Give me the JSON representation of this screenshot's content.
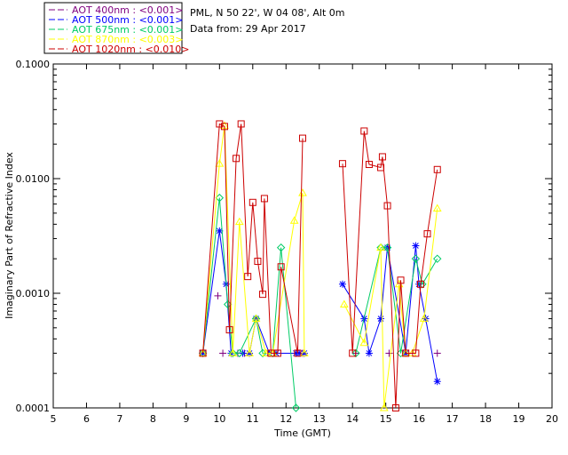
{
  "chart_data": {
    "type": "scatter",
    "title_lines": [
      "PML, N 50 22', W 04 08', Alt 0m",
      "Data from: 29 Apr 2017"
    ],
    "xlabel": "Time (GMT)",
    "ylabel": "Imaginary Part of Refractive Index",
    "xlim": [
      5,
      20
    ],
    "ylim": [
      0.0001,
      0.1
    ],
    "yscale": "log",
    "x_ticks": [
      "5",
      "6",
      "7",
      "8",
      "9",
      "10",
      "11",
      "12",
      "13",
      "14",
      "15",
      "16",
      "17",
      "18",
      "19",
      "20"
    ],
    "y_ticks": [
      "0.1000",
      "0.0100",
      "0.0010",
      "0.0001"
    ],
    "grid": false,
    "legend_position": "top-left, outside plot",
    "series": [
      {
        "name": "AOT  400nm : <0.001>",
        "color": "#7f007f",
        "marker": "plus",
        "connected": false,
        "points": [
          [
            9.95,
            0.00095
          ],
          [
            10.1,
            0.0003
          ],
          [
            10.55,
            0.0003
          ],
          [
            10.75,
            0.0003
          ],
          [
            12.5,
            0.0003
          ],
          [
            14.1,
            0.0003
          ],
          [
            15.1,
            0.0003
          ],
          [
            15.6,
            0.0003
          ],
          [
            16.55,
            0.0003
          ]
        ]
      },
      {
        "name": "AOT  500nm : <0.001>",
        "color": "#0000ff",
        "marker": "asterisk",
        "connected": true,
        "points": [
          [
            9.5,
            0.0003
          ],
          [
            10.0,
            0.0035
          ],
          [
            10.2,
            0.0012
          ],
          [
            10.35,
            0.0003
          ],
          [
            10.7,
            0.0003
          ],
          [
            10.9,
            0.0003
          ],
          [
            11.1,
            0.0006
          ],
          [
            11.5,
            0.0003
          ],
          [
            11.7,
            0.0003
          ],
          [
            12.3,
            0.0003
          ],
          [
            12.4,
            0.0003
          ],
          [
            12.55,
            0.0003
          ],
          null,
          [
            13.7,
            0.0012
          ],
          [
            14.35,
            0.0006
          ],
          [
            14.5,
            0.0003
          ],
          [
            14.85,
            0.0006
          ],
          [
            15.05,
            0.0025
          ],
          [
            15.6,
            0.0003
          ],
          [
            15.9,
            0.0026
          ],
          [
            16.0,
            0.0012
          ],
          [
            16.2,
            0.0006
          ],
          [
            16.55,
            0.00017
          ]
        ]
      },
      {
        "name": "AOT  675nm : <0.001>",
        "color": "#00cc66",
        "marker": "diamond",
        "connected": true,
        "points": [
          [
            9.5,
            0.0003
          ],
          [
            10.0,
            0.0068
          ],
          [
            10.25,
            0.0008
          ],
          [
            10.4,
            0.0003
          ],
          [
            10.6,
            0.0003
          ],
          [
            11.1,
            0.0006
          ],
          [
            11.3,
            0.0003
          ],
          [
            11.6,
            0.0003
          ],
          [
            11.85,
            0.0025
          ],
          [
            12.3,
            0.0001
          ],
          null,
          [
            14.1,
            0.0003
          ],
          [
            14.85,
            0.0025
          ],
          [
            15.05,
            0.0025
          ],
          [
            15.45,
            0.0003
          ],
          [
            15.9,
            0.002
          ],
          [
            16.1,
            0.0012
          ],
          [
            16.55,
            0.002
          ]
        ]
      },
      {
        "name": "AOT  870nm : <0.003>",
        "color": "#ffff00",
        "marker": "triangle",
        "connected": true,
        "points": [
          [
            9.5,
            0.0003
          ],
          [
            10.0,
            0.0135
          ],
          [
            10.15,
            0.029
          ],
          [
            10.4,
            0.0003
          ],
          [
            10.6,
            0.0042
          ],
          [
            10.9,
            0.0003
          ],
          [
            11.1,
            0.0006
          ],
          [
            11.4,
            0.0003
          ],
          [
            11.6,
            0.0003
          ],
          [
            12.25,
            0.0043
          ],
          [
            12.5,
            0.0075
          ],
          [
            12.55,
            0.0003
          ],
          null,
          [
            13.75,
            0.0008
          ],
          [
            14.35,
            0.00037
          ],
          [
            14.85,
            0.0025
          ],
          [
            14.95,
            0.0001
          ],
          [
            15.4,
            0.0012
          ],
          [
            15.6,
            0.0003
          ],
          [
            15.8,
            0.0003
          ],
          [
            16.15,
            0.0006
          ],
          [
            16.55,
            0.0055
          ]
        ]
      },
      {
        "name": "AOT 1020nm : <0.010>",
        "color": "#cc0000",
        "marker": "square",
        "connected": true,
        "points": [
          [
            9.5,
            0.0003
          ],
          [
            10.0,
            0.03
          ],
          [
            10.15,
            0.0285
          ],
          [
            10.3,
            0.00048
          ],
          [
            10.5,
            0.015
          ],
          [
            10.65,
            0.03
          ],
          [
            10.85,
            0.0014
          ],
          [
            11.0,
            0.0062
          ],
          [
            11.15,
            0.0019
          ],
          [
            11.3,
            0.00098
          ],
          [
            11.35,
            0.0067
          ],
          [
            11.55,
            0.0003
          ],
          [
            11.75,
            0.0003
          ],
          [
            11.85,
            0.0017
          ],
          [
            12.35,
            0.0003
          ],
          [
            12.5,
            0.0225
          ],
          null,
          [
            13.7,
            0.0135
          ],
          [
            14.0,
            0.0003
          ],
          [
            14.35,
            0.026
          ],
          [
            14.5,
            0.0133
          ],
          [
            14.85,
            0.0125
          ],
          [
            14.9,
            0.0155
          ],
          [
            15.05,
            0.0058
          ],
          [
            15.3,
            0.0001
          ],
          [
            15.45,
            0.0013
          ],
          [
            15.6,
            0.0003
          ],
          [
            15.9,
            0.0003
          ],
          [
            16.05,
            0.0012
          ],
          [
            16.25,
            0.0033
          ],
          [
            16.55,
            0.012
          ]
        ]
      }
    ]
  }
}
